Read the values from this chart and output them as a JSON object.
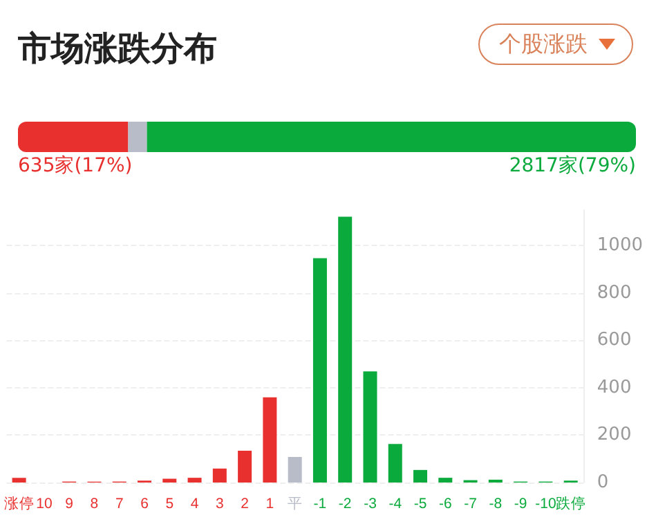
{
  "chart_data": [
    {
      "type": "bar",
      "title": "市场涨跌分布",
      "annotations": [
        "个股涨跌"
      ],
      "orientation": "horizontal",
      "stacked": true,
      "categories": [
        null
      ],
      "series": [
        {
          "color": "#e8302f",
          "values": [
            635
          ],
          "value_labels": [
            "635家(17%)"
          ]
        },
        {
          "color": "#b8bcc8",
          "values": [
            108
          ],
          "value_labels": [
            null
          ]
        },
        {
          "color": "#0aaa3c",
          "values": [
            2817
          ],
          "value_labels": [
            "2817家(79%)"
          ]
        }
      ]
    },
    {
      "type": "bar",
      "categories": [
        "涨停",
        "10",
        "9",
        "8",
        "7",
        "6",
        "5",
        "4",
        "3",
        "2",
        "1",
        "平",
        "-1",
        "-2",
        "-3",
        "-4",
        "-5",
        "-6",
        "-7",
        "-8",
        "-9",
        "-10",
        "跌停"
      ],
      "values": [
        20,
        0,
        4,
        4,
        4,
        8,
        16,
        20,
        59,
        134,
        360,
        108,
        947,
        1122,
        469,
        163,
        53,
        20,
        10,
        12,
        4,
        4,
        8
      ],
      "colors": [
        "#e8302f",
        "#e8302f",
        "#e8302f",
        "#e8302f",
        "#e8302f",
        "#e8302f",
        "#e8302f",
        "#e8302f",
        "#e8302f",
        "#e8302f",
        "#e8302f",
        "#b8bcc8",
        "#0aaa3c",
        "#0aaa3c",
        "#0aaa3c",
        "#0aaa3c",
        "#0aaa3c",
        "#0aaa3c",
        "#0aaa3c",
        "#0aaa3c",
        "#0aaa3c",
        "#0aaa3c",
        "#0aaa3c"
      ],
      "ylim": [
        0,
        1150
      ],
      "yticks": [
        0,
        200,
        400,
        600,
        800,
        1000
      ],
      "grid": "y"
    }
  ]
}
